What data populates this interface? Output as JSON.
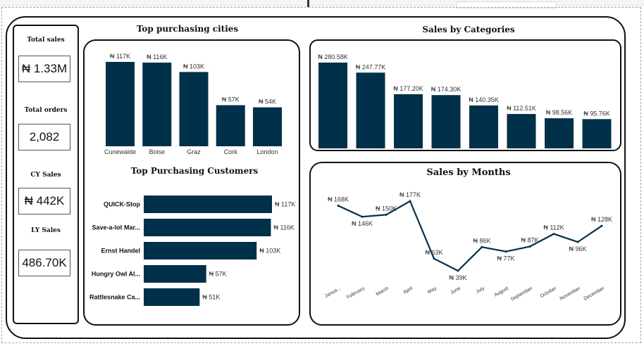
{
  "kpis": [
    {
      "title": "Total sales",
      "value": "₦ 1.33M"
    },
    {
      "title": "Total orders",
      "value": "2,082"
    },
    {
      "title": "CY Sales",
      "value": "₦ 442K"
    },
    {
      "title": "LY Sales",
      "value": "486.70K"
    }
  ],
  "titles": {
    "cities": "Top purchasing cities",
    "customers": "Top Purchasing Customers",
    "categories": "Sales by Categories",
    "months": "Sales by Months"
  },
  "colors": {
    "bar": "#00304a",
    "line": "#00304a"
  },
  "chart_data": [
    {
      "type": "bar",
      "title": "Top purchasing cities",
      "categories": [
        "Cunewalde",
        "Boise",
        "Graz",
        "Cork",
        "London"
      ],
      "values": [
        117,
        116,
        103,
        57,
        54
      ],
      "labels": [
        "₦ 117K",
        "₦ 116K",
        "₦ 103K",
        "₦ 57K",
        "₦ 54K"
      ]
    },
    {
      "type": "bar",
      "orientation": "horizontal",
      "title": "Top Purchasing Customers",
      "categories": [
        "QUICK-Stop",
        "Save-a-lot Mar...",
        "Ernst Handel",
        "Hungry Owl Al...",
        "Rattlesnake Ca..."
      ],
      "values": [
        117,
        116,
        103,
        57,
        51
      ],
      "labels": [
        "₦ 117K",
        "₦ 116K",
        "₦ 103K",
        "₦ 57K",
        "₦ 51K"
      ]
    },
    {
      "type": "bar",
      "title": "Sales by Categories",
      "values": [
        280.58,
        247.77,
        177.2,
        174.3,
        140.35,
        112.51,
        98.56,
        95.76
      ],
      "labels": [
        "₦ 280.58K",
        "₦ 247.77K",
        "₦ 177.20K",
        "₦ 174.30K",
        "₦ 140.35K",
        "₦ 112.51K",
        "₦ 98.56K",
        "₦ 95.76K"
      ]
    },
    {
      "type": "line",
      "title": "Sales by Months",
      "categories": [
        "Janua...",
        "February",
        "March",
        "April",
        "May",
        "June",
        "July",
        "August",
        "September",
        "October",
        "November",
        "December"
      ],
      "values": [
        168,
        146,
        150,
        177,
        63,
        39,
        86,
        77,
        87,
        112,
        96,
        128
      ],
      "labels": [
        "₦ 168K",
        "₦ 146K",
        "₦ 150K",
        "₦ 177K",
        "₦ 63K",
        "₦ 39K",
        "₦ 86K",
        "₦ 77K",
        "₦ 87K",
        "₦ 112K",
        "₦ 96K",
        "₦ 128K"
      ],
      "label_position": [
        "above",
        "below",
        "above",
        "above",
        "above",
        "below",
        "above",
        "below",
        "above",
        "above",
        "below",
        "above"
      ]
    }
  ]
}
